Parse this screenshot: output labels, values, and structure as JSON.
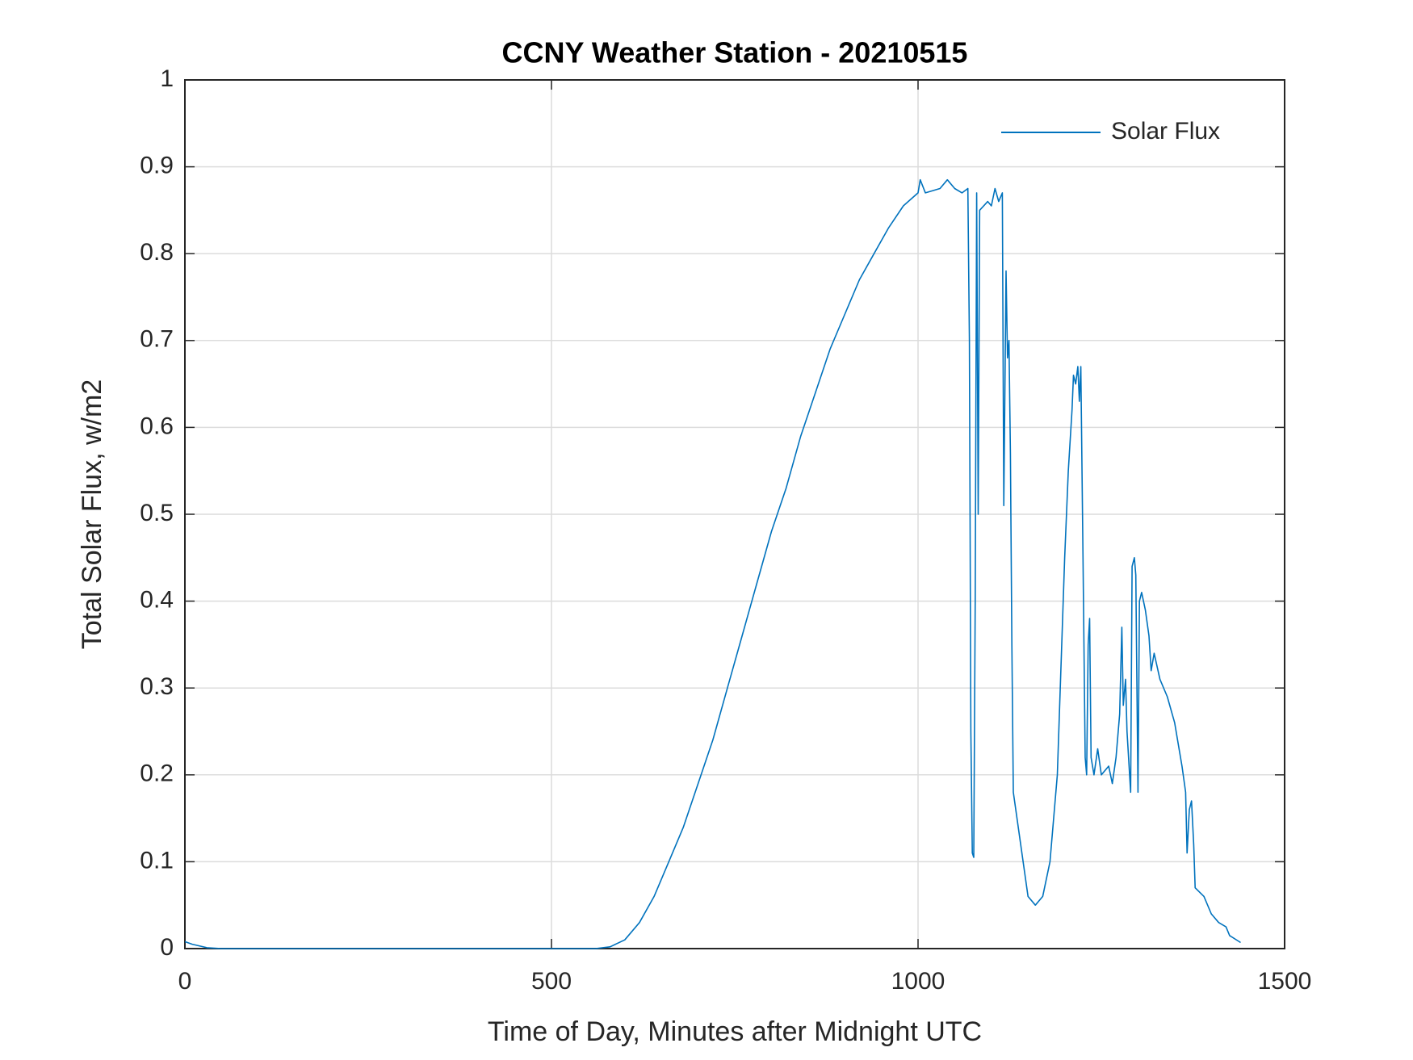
{
  "chart_data": {
    "type": "line",
    "title": "CCNY Weather Station - 20210515",
    "xlabel": "Time of Day, Minutes after Midnight UTC",
    "ylabel": "Total Solar Flux, w/m2",
    "x": [
      0,
      10,
      30,
      50,
      100,
      200,
      300,
      400,
      500,
      560,
      580,
      600,
      620,
      640,
      660,
      680,
      700,
      720,
      740,
      760,
      780,
      800,
      820,
      840,
      860,
      880,
      900,
      920,
      940,
      960,
      980,
      1000,
      1003,
      1010,
      1030,
      1040,
      1050,
      1060,
      1068,
      1070,
      1072,
      1074,
      1076,
      1078,
      1080,
      1082,
      1084,
      1095,
      1100,
      1105,
      1110,
      1115,
      1117,
      1120,
      1122,
      1124,
      1126,
      1128,
      1130,
      1140,
      1150,
      1160,
      1170,
      1180,
      1190,
      1200,
      1205,
      1210,
      1212,
      1215,
      1218,
      1220,
      1222,
      1225,
      1228,
      1230,
      1232,
      1234,
      1236,
      1240,
      1245,
      1250,
      1260,
      1265,
      1270,
      1275,
      1278,
      1280,
      1283,
      1285,
      1290,
      1292,
      1295,
      1297,
      1300,
      1302,
      1305,
      1310,
      1315,
      1318,
      1322,
      1330,
      1340,
      1350,
      1360,
      1365,
      1367,
      1370,
      1373,
      1376,
      1378,
      1390,
      1400,
      1410,
      1420,
      1425,
      1440
    ],
    "series": [
      {
        "name": "Solar Flux",
        "color": "#0072bd",
        "values": [
          0.008,
          0.005,
          0.001,
          0,
          0,
          0,
          0,
          0,
          0,
          0,
          0.002,
          0.01,
          0.03,
          0.06,
          0.1,
          0.14,
          0.19,
          0.24,
          0.3,
          0.36,
          0.42,
          0.48,
          0.53,
          0.59,
          0.64,
          0.69,
          0.73,
          0.77,
          0.8,
          0.83,
          0.855,
          0.87,
          0.885,
          0.87,
          0.875,
          0.885,
          0.875,
          0.87,
          0.875,
          0.7,
          0.25,
          0.11,
          0.105,
          0.4,
          0.87,
          0.5,
          0.85,
          0.86,
          0.855,
          0.875,
          0.86,
          0.87,
          0.51,
          0.78,
          0.68,
          0.7,
          0.57,
          0.35,
          0.18,
          0.12,
          0.06,
          0.05,
          0.06,
          0.1,
          0.2,
          0.45,
          0.55,
          0.62,
          0.66,
          0.65,
          0.67,
          0.63,
          0.67,
          0.45,
          0.22,
          0.2,
          0.35,
          0.38,
          0.22,
          0.2,
          0.23,
          0.2,
          0.21,
          0.19,
          0.22,
          0.27,
          0.37,
          0.28,
          0.31,
          0.25,
          0.18,
          0.44,
          0.45,
          0.43,
          0.18,
          0.4,
          0.41,
          0.39,
          0.36,
          0.32,
          0.34,
          0.31,
          0.29,
          0.26,
          0.21,
          0.18,
          0.11,
          0.16,
          0.17,
          0.12,
          0.07,
          0.06,
          0.04,
          0.03,
          0.025,
          0.015,
          0.007
        ]
      }
    ],
    "xlim": [
      0,
      1500
    ],
    "xticks": [
      0,
      500,
      1000,
      1500
    ],
    "ylim": [
      0,
      1
    ],
    "yticks": [
      0,
      0.1,
      0.2,
      0.3,
      0.4,
      0.5,
      0.6,
      0.7,
      0.8,
      0.9,
      1
    ],
    "grid": true,
    "legend": "northeast"
  }
}
